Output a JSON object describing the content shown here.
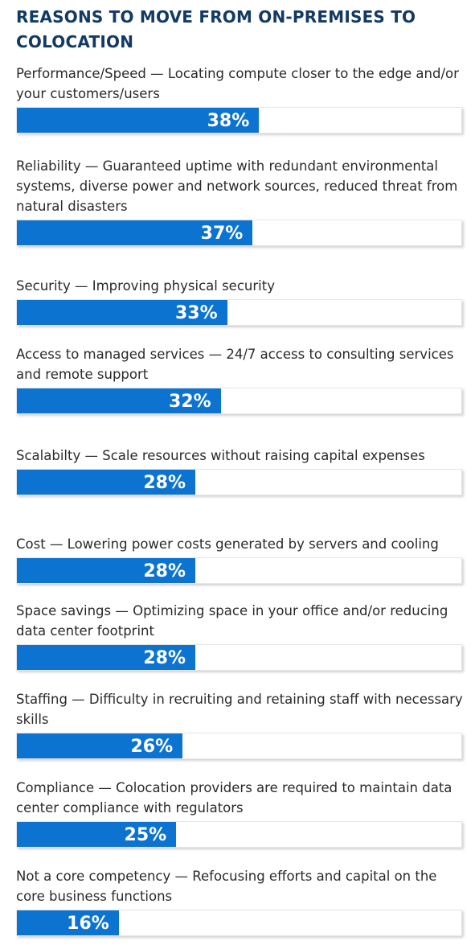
{
  "header": {
    "title": "REASONS TO MOVE FROM ON-PREMISES TO COLOCATION"
  },
  "colors": {
    "bar": "#0d73d1",
    "title": "#123a63"
  },
  "chart_data": {
    "type": "bar",
    "orientation": "horizontal",
    "title": "REASONS TO MOVE FROM ON-PREMISES TO COLOCATION",
    "xlim": [
      0,
      70
    ],
    "grid": false,
    "categories": [
      "Performance/Speed — Locating compute closer to the edge and/or your customers/users",
      "Reliability — Guaranteed uptime with redundant environmental systems, diverse power and network sources, reduced threat from natural disasters",
      "Security — Improving physical security",
      "Access to managed services — 24/7 access to consulting services and remote support",
      "Scalabilty — Scale resources without raising capital expenses",
      "Cost — Lowering power costs generated by servers and cooling",
      "Space savings — Optimizing space in your office and/or reducing data center footprint",
      "Staffing — Difficulty in recruiting and retaining staff with necessary skills",
      "Compliance — Colocation providers are required to maintain data center compliance with regulators",
      "Not a core competency — Refocusing efforts and capital on the core business functions"
    ],
    "values": [
      38,
      37,
      33,
      32,
      28,
      28,
      28,
      26,
      25,
      16
    ],
    "labels": [
      "38%",
      "37%",
      "33%",
      "32%",
      "28%",
      "28%",
      "28%",
      "26%",
      "25%",
      "16%"
    ]
  }
}
